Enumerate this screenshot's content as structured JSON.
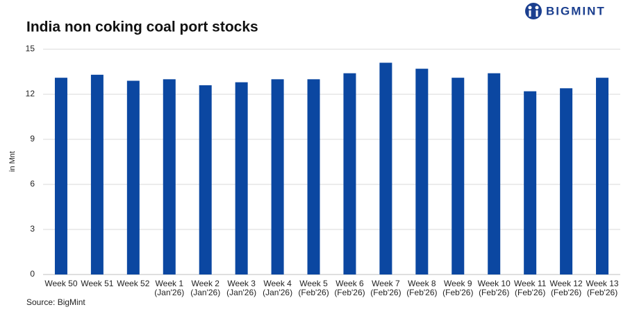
{
  "logo": "BIGMINT",
  "chart_data": {
    "type": "bar",
    "title": "India non coking coal port stocks",
    "y_label": "in Mnt",
    "source": "Source: BigMint",
    "categories": [
      [
        "Week 50"
      ],
      [
        "Week 51"
      ],
      [
        "Week 52"
      ],
      [
        "Week 1",
        "(Jan'26)"
      ],
      [
        "Week 2",
        "(Jan'26)"
      ],
      [
        "Week 3",
        "(Jan'26)"
      ],
      [
        "Week 4",
        "(Jan'26)"
      ],
      [
        "Week 5",
        "(Feb'26)"
      ],
      [
        "Week 6",
        "(Feb'26)"
      ],
      [
        "Week 7",
        "(Feb'26)"
      ],
      [
        "Week 8",
        "(Feb'26)"
      ],
      [
        "Week 9",
        "(Feb'26)"
      ],
      [
        "Week 10",
        "(Feb'26)"
      ],
      [
        "Week 11",
        "(Feb'26)"
      ],
      [
        "Week 12",
        "(Feb'26)"
      ],
      [
        "Week 13",
        "(Feb'26)"
      ]
    ],
    "values": [
      13.1,
      13.3,
      12.9,
      13.0,
      12.6,
      12.8,
      13.0,
      13.0,
      13.4,
      14.1,
      13.7,
      13.1,
      13.4,
      12.2,
      12.4,
      13.1
    ],
    "color": "#0b47a1",
    "ylim": [
      0,
      15
    ],
    "yticks": [
      0,
      3,
      6,
      9,
      12,
      15
    ],
    "grid": true
  }
}
